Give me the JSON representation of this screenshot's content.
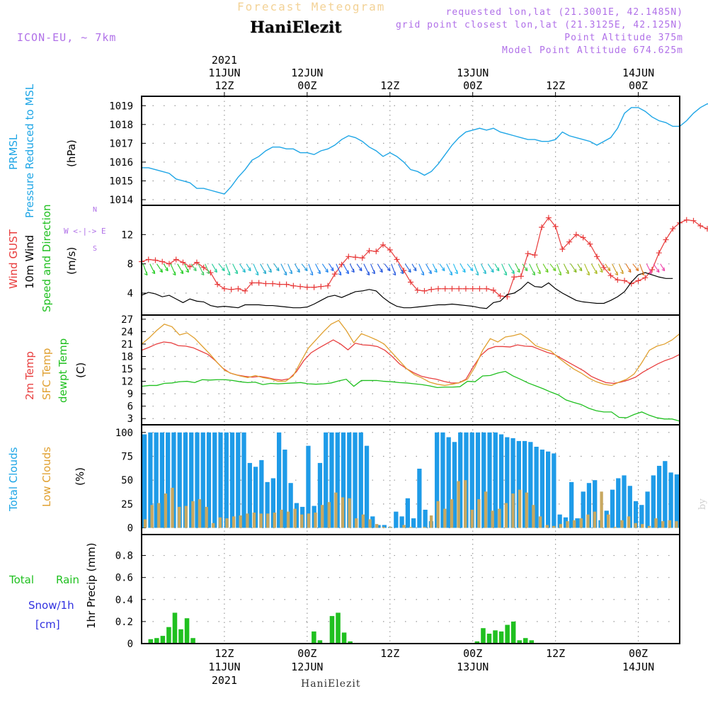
{
  "header": {
    "title": "Forecast Meteogram",
    "location": "HaniElezit",
    "model": "ICON-EU, ~ 7km",
    "requested": "requested lon,lat (21.3001E, 42.1485N)",
    "gridpoint": "grid point closest lon,lat (21.3125E, 42.125N)",
    "point_altitude": "Point Altitude 375m",
    "model_altitude": "Model Point Altitude 674.625m"
  },
  "footer": {
    "location": "HaniElezit",
    "credit": "by Angel"
  },
  "time_axis": {
    "top": [
      {
        "x_h": 12,
        "lines": [
          "2021",
          "11JUN",
          "12Z"
        ]
      },
      {
        "x_h": 24,
        "lines": [
          "12JUN",
          "00Z"
        ]
      },
      {
        "x_h": 36,
        "lines": [
          "12Z"
        ]
      },
      {
        "x_h": 48,
        "lines": [
          "13JUN",
          "00Z"
        ]
      },
      {
        "x_h": 60,
        "lines": [
          "12Z"
        ]
      },
      {
        "x_h": 72,
        "lines": [
          "14JUN",
          "00Z"
        ]
      }
    ],
    "bottom": [
      {
        "x_h": 12,
        "lines": [
          "12Z",
          "11JUN",
          "2021"
        ]
      },
      {
        "x_h": 24,
        "lines": [
          "00Z",
          "12JUN"
        ]
      },
      {
        "x_h": 36,
        "lines": [
          "12Z"
        ]
      },
      {
        "x_h": 48,
        "lines": [
          "00Z",
          "13JUN"
        ]
      },
      {
        "x_h": 60,
        "lines": [
          "12Z"
        ]
      },
      {
        "x_h": 72,
        "lines": [
          "00Z",
          "14JUN"
        ]
      }
    ]
  },
  "labels": {
    "p1": [
      "PRMSL",
      "Pressure Reduced to MSL",
      "(hPa)"
    ],
    "p2": [
      "Wind GUST",
      "10m Wind",
      "Speed and Direction",
      "(m/s)"
    ],
    "p3": [
      "2m Temp",
      "SFC Temp",
      "dewpt Temp",
      "(C)"
    ],
    "p4": [
      "Total Clouds",
      "Low Clouds",
      "(%)"
    ],
    "p5": [
      "1hr Precip (mm)"
    ],
    "precip_legend": [
      "Total",
      "Rain",
      "Snow/1h",
      "[cm]"
    ],
    "compass": [
      "N",
      "W <-|-> E",
      "S"
    ]
  },
  "colors": {
    "prmsl": "#1fa6e6",
    "gust": "#e83b3b",
    "wind": "#000000",
    "t2m": "#e84040",
    "sfc": "#e0a030",
    "dewpt": "#20c020",
    "total_clouds": "#1e9be8",
    "low_clouds": "#c8a860",
    "precip": "#20c020",
    "violet": "#b070e8",
    "snow": "#3030e0"
  },
  "chart_data": [
    {
      "type": "line",
      "title": "PRMSL Pressure Reduced to MSL",
      "ylabel": "(hPa)",
      "ylim": [
        1013.7,
        1019.5
      ],
      "yticks": [
        1014,
        1015,
        1016,
        1017,
        1018,
        1019
      ],
      "x_hours_start": 0,
      "x_step_h": 1,
      "series": [
        {
          "name": "PRMSL",
          "values": [
            1015.7,
            1015.7,
            1015.6,
            1015.5,
            1015.4,
            1015.1,
            1015.0,
            1014.9,
            1014.6,
            1014.6,
            1014.5,
            1014.4,
            1014.3,
            1014.7,
            1015.2,
            1015.6,
            1016.1,
            1016.3,
            1016.6,
            1016.8,
            1016.8,
            1016.7,
            1016.7,
            1016.5,
            1016.5,
            1016.4,
            1016.6,
            1016.7,
            1016.9,
            1017.2,
            1017.4,
            1017.3,
            1017.1,
            1016.8,
            1016.6,
            1016.3,
            1016.5,
            1016.3,
            1016.0,
            1015.6,
            1015.5,
            1015.3,
            1015.5,
            1015.9,
            1016.4,
            1016.9,
            1017.3,
            1017.6,
            1017.7,
            1017.8,
            1017.7,
            1017.8,
            1017.6,
            1017.5,
            1017.4,
            1017.3,
            1017.2,
            1017.2,
            1017.1,
            1017.1,
            1017.2,
            1017.6,
            1017.4,
            1017.3,
            1017.2,
            1017.1,
            1016.9,
            1017.1,
            1017.3,
            1017.8,
            1018.6,
            1018.9,
            1018.9,
            1018.7,
            1018.4,
            1018.2,
            1018.1,
            1017.9,
            1017.9,
            1018.2,
            1018.6,
            1018.9,
            1019.1,
            1019.0,
            1018.6,
            1018.1,
            1017.6,
            1017.1
          ]
        }
      ]
    },
    {
      "type": "line",
      "title": "Wind GUST / 10m Wind Speed and Direction",
      "ylabel": "(m/s)",
      "ylim": [
        1,
        16
      ],
      "yticks": [
        4,
        8,
        12
      ],
      "x_hours_start": 0,
      "x_step_h": 1,
      "series": [
        {
          "name": "Wind GUST",
          "values": [
            8.3,
            8.6,
            8.5,
            8.3,
            8.0,
            8.6,
            8.2,
            7.6,
            8.2,
            7.5,
            6.8,
            5.2,
            4.6,
            4.5,
            4.6,
            4.3,
            5.4,
            5.4,
            5.3,
            5.3,
            5.2,
            5.2,
            5.0,
            4.9,
            4.8,
            4.8,
            4.9,
            5.0,
            6.6,
            7.9,
            9.0,
            8.9,
            8.8,
            9.8,
            9.7,
            10.6,
            9.9,
            8.6,
            7.1,
            5.5,
            4.4,
            4.3,
            4.5,
            4.6,
            4.6,
            4.6,
            4.6,
            4.6,
            4.6,
            4.6,
            4.6,
            4.4,
            3.6,
            3.5,
            6.2,
            6.3,
            9.4,
            9.2,
            13.0,
            14.3,
            13.1,
            10.0,
            11.0,
            12.0,
            11.6,
            10.7,
            9.0,
            7.5,
            6.4,
            5.8,
            5.7,
            5.3,
            5.7,
            6.1,
            7.2,
            9.5,
            11.3,
            12.8,
            13.6,
            14.0,
            13.9,
            13.2,
            12.8,
            12.6
          ]
        },
        {
          "name": "10m Wind",
          "values": [
            3.7,
            4.1,
            3.9,
            3.5,
            3.7,
            3.2,
            2.7,
            3.2,
            2.9,
            2.8,
            2.3,
            2.1,
            2.2,
            2.1,
            2.0,
            2.4,
            2.4,
            2.4,
            2.3,
            2.3,
            2.2,
            2.1,
            2.0,
            2.0,
            2.1,
            2.5,
            3.0,
            3.5,
            3.7,
            3.4,
            3.8,
            4.2,
            4.3,
            4.5,
            4.3,
            3.4,
            2.7,
            2.2,
            2.0,
            2.0,
            2.1,
            2.2,
            2.3,
            2.4,
            2.4,
            2.5,
            2.4,
            2.3,
            2.2,
            2.0,
            1.9,
            2.7,
            2.9,
            3.8,
            4.0,
            4.6,
            5.5,
            4.9,
            4.8,
            5.4,
            4.6,
            4.0,
            3.5,
            3.0,
            2.8,
            2.7,
            2.6,
            2.6,
            3.0,
            3.5,
            4.2,
            5.5,
            6.5,
            6.8,
            6.5,
            6.2,
            6.0,
            6.0
          ]
        }
      ]
    },
    {
      "type": "line",
      "title": "2m Temp / SFC Temp / dewpt Temp",
      "ylabel": "(C)",
      "ylim": [
        1.5,
        28
      ],
      "yticks": [
        3,
        6,
        9,
        12,
        15,
        18,
        21,
        24,
        27
      ],
      "x_hours_start": 0,
      "x_step_h": 1,
      "series": [
        {
          "name": "2m Temp",
          "values": [
            19.5,
            20.2,
            21.0,
            21.5,
            21.3,
            20.6,
            20.5,
            20.1,
            19.3,
            18.5,
            17.0,
            15.2,
            14.0,
            13.5,
            13.2,
            13.0,
            13.2,
            12.9,
            12.5,
            12.3,
            12.6,
            14.3,
            17.0,
            18.9,
            20.0,
            21.0,
            22.0,
            21.0,
            19.6,
            21.2,
            20.8,
            20.7,
            20.4,
            19.5,
            18.0,
            16.2,
            15.0,
            14.0,
            13.2,
            12.8,
            12.5,
            12.0,
            11.6,
            11.6,
            12.5,
            15.5,
            18.2,
            19.8,
            20.4,
            20.4,
            20.3,
            20.8,
            20.5,
            20.4,
            19.7,
            19.0,
            18.5,
            17.5,
            16.5,
            15.5,
            14.5,
            13.2,
            12.4,
            11.7,
            11.5,
            11.8,
            12.3,
            13.0,
            14.2,
            15.2,
            16.2,
            17.0,
            17.6,
            18.5
          ]
        },
        {
          "name": "SFC Temp",
          "values": [
            21.0,
            22.5,
            24.3,
            25.8,
            25.2,
            23.2,
            23.7,
            22.4,
            20.5,
            18.6,
            16.5,
            14.6,
            13.8,
            13.3,
            12.9,
            13.4,
            12.9,
            12.6,
            12.0,
            12.0,
            13.3,
            16.7,
            20.0,
            22.0,
            24.0,
            25.8,
            26.7,
            24.3,
            21.3,
            23.5,
            22.8,
            22.0,
            21.0,
            19.0,
            17.0,
            15.0,
            13.6,
            12.8,
            11.8,
            11.3,
            11.0,
            11.3,
            11.7,
            12.5,
            15.5,
            19.5,
            22.3,
            21.5,
            22.7,
            23.0,
            23.5,
            22.3,
            20.6,
            19.9,
            19.3,
            17.7,
            16.3,
            15.0,
            14.0,
            12.8,
            11.9,
            11.3,
            11.0,
            11.8,
            12.5,
            13.8,
            16.5,
            19.5,
            20.5,
            21.0,
            22.0,
            23.5
          ]
        },
        {
          "name": "dewpt Temp",
          "values": [
            10.8,
            11.0,
            11.0,
            11.5,
            11.6,
            11.9,
            12.0,
            11.7,
            12.4,
            12.3,
            12.4,
            12.4,
            12.2,
            11.9,
            11.7,
            11.8,
            11.2,
            11.5,
            11.4,
            11.5,
            11.6,
            11.7,
            11.4,
            11.3,
            11.4,
            11.6,
            12.1,
            12.5,
            10.8,
            12.2,
            12.2,
            12.2,
            12.0,
            11.9,
            11.7,
            11.6,
            11.4,
            11.2,
            10.9,
            10.5,
            10.6,
            10.6,
            10.7,
            12.0,
            11.9,
            13.3,
            13.4,
            14.0,
            14.4,
            13.3,
            12.5,
            11.6,
            10.9,
            10.2,
            9.4,
            8.7,
            7.5,
            6.9,
            6.4,
            5.5,
            4.9,
            4.6,
            4.6,
            3.3,
            3.2,
            4.0,
            4.6,
            3.8,
            3.2,
            2.9,
            2.9,
            2.4
          ]
        }
      ]
    },
    {
      "type": "bar",
      "title": "Total Clouds / Low Clouds",
      "ylabel": "(%)",
      "ylim": [
        -7,
        108
      ],
      "yticks": [
        0,
        25,
        50,
        75,
        100
      ],
      "x_hours_start": 0,
      "x_step_h": 1,
      "series": [
        {
          "name": "Total Clouds",
          "values": [
            98,
            100,
            100,
            100,
            100,
            100,
            100,
            100,
            100,
            100,
            100,
            100,
            100,
            100,
            100,
            100,
            100,
            100,
            68,
            64,
            71,
            48,
            52,
            100,
            82,
            47,
            26,
            22,
            86,
            23,
            68,
            100,
            100,
            100,
            100,
            100,
            100,
            100,
            86,
            12,
            3,
            3,
            1,
            17,
            12,
            31,
            10,
            62,
            19,
            7,
            100,
            100,
            95,
            90,
            100,
            100,
            100,
            100,
            100,
            100,
            100,
            98,
            95,
            94,
            91,
            91,
            90,
            85,
            82,
            80,
            78,
            14,
            11,
            48,
            10,
            38,
            47,
            50,
            8,
            18,
            40,
            52,
            55,
            44,
            28,
            24,
            38,
            55,
            65,
            70,
            58,
            56
          ]
        },
        {
          "name": "Low Clouds",
          "values": [
            9,
            24,
            26,
            36,
            42,
            22,
            23,
            28,
            30,
            22,
            5,
            11,
            10,
            12,
            13,
            15,
            16,
            15,
            15,
            16,
            19,
            17,
            20,
            14,
            15,
            16,
            24,
            27,
            37,
            32,
            31,
            10,
            14,
            9,
            4,
            1,
            1,
            0,
            3,
            1,
            0,
            1,
            13,
            28,
            20,
            30,
            49,
            50,
            19,
            30,
            38,
            18,
            20,
            26,
            36,
            40,
            37,
            24,
            12,
            3,
            2,
            4,
            7,
            8,
            10,
            14,
            17,
            38,
            14,
            1,
            8,
            12,
            5,
            4,
            2,
            10,
            7,
            8,
            7
          ]
        }
      ]
    },
    {
      "type": "bar",
      "title": "1hr Precip",
      "ylabel": "1hr Precip (mm)",
      "ylim": [
        0,
        0.99
      ],
      "yticks": [
        0,
        0.2,
        0.4,
        0.6,
        0.8
      ],
      "x_hours_start": 0,
      "x_step_h": 1,
      "series": [
        {
          "name": "Total Rain",
          "values": [
            0,
            0.04,
            0.05,
            0.07,
            0.15,
            0.28,
            0.13,
            0.23,
            0.05,
            0,
            0,
            0,
            0,
            0,
            0,
            0,
            0,
            0,
            0,
            0,
            0,
            0,
            0,
            0,
            0,
            0,
            0,
            0,
            0.11,
            0.03,
            0,
            0.25,
            0.28,
            0.1,
            0.02,
            0,
            0,
            0,
            0,
            0,
            0,
            0,
            0,
            0,
            0,
            0,
            0,
            0,
            0,
            0,
            0,
            0,
            0,
            0,
            0,
            0.02,
            0.14,
            0.09,
            0.12,
            0.11,
            0.17,
            0.2,
            0.03,
            0.05,
            0.03,
            0,
            0,
            0,
            0,
            0,
            0,
            0,
            0,
            0,
            0,
            0,
            0,
            0,
            0,
            0,
            0,
            0,
            0,
            0,
            0,
            0,
            0,
            0,
            0
          ]
        }
      ]
    }
  ]
}
